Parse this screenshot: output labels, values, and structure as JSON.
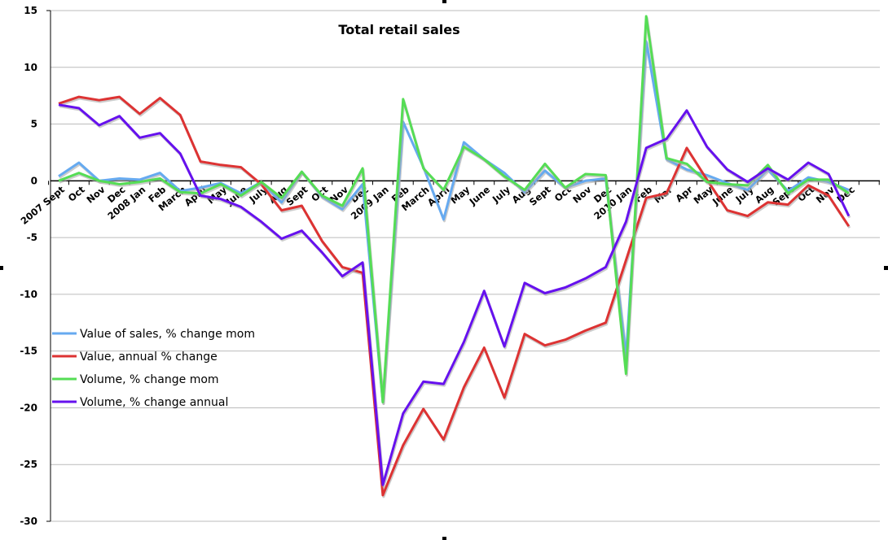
{
  "chart_data": {
    "type": "line",
    "title": "Total retail sales",
    "xlabel": "",
    "ylabel": "",
    "ylim": [
      -30,
      15
    ],
    "yticks": [
      15,
      10,
      5,
      0,
      -5,
      -10,
      -15,
      -20,
      -25,
      -30
    ],
    "grid": "horizontal",
    "legend_placement": "left",
    "categories": [
      "2007 Sept",
      "Oct",
      "Nov",
      "Dec",
      "2008 Jan",
      "Feb",
      "March",
      "April",
      "May",
      "June",
      "July",
      "Aug",
      "Sept",
      "Oct",
      "Nov",
      "Dec",
      "2009 Jan",
      "Feb",
      "March",
      "April",
      "May",
      "June",
      "July",
      "Aug",
      "Sept",
      "Oct",
      "Nov",
      "Dec",
      "2010 Jan",
      "Feb",
      "Mar",
      "Apr",
      "May",
      "June",
      "July",
      "Aug",
      "Sept",
      "Oct",
      "Nov",
      "Dec"
    ],
    "series": [
      {
        "name": "Value of sales, % change mom",
        "color": "#66aaf0",
        "values": [
          0.4,
          1.6,
          0.0,
          0.2,
          0.1,
          0.7,
          -0.9,
          -0.6,
          -0.2,
          -1.1,
          -0.1,
          -1.9,
          0.8,
          -1.4,
          -2.5,
          -0.3,
          -19.5,
          5.2,
          1.2,
          -3.4,
          3.4,
          1.9,
          0.7,
          -1.0,
          0.9,
          -0.6,
          0.0,
          0.2,
          -15.5,
          12.3,
          1.9,
          1.0,
          0.5,
          -0.2,
          -0.8,
          1.0,
          -0.9,
          0.3,
          -0.1,
          -0.8
        ]
      },
      {
        "name": "Value, annual % change",
        "color": "#dd3333",
        "values": [
          6.8,
          7.4,
          7.1,
          7.4,
          5.9,
          7.3,
          5.8,
          1.7,
          1.4,
          1.2,
          -0.3,
          -2.6,
          -2.2,
          -5.3,
          -7.6,
          -8.1,
          -27.7,
          -23.3,
          -20.1,
          -22.8,
          -18.2,
          -14.7,
          -19.1,
          -13.5,
          -14.5,
          -14.0,
          -13.2,
          -12.5,
          -7.0,
          -1.5,
          -1.1,
          2.9,
          0.1,
          -2.6,
          -3.1,
          -1.9,
          -2.1,
          -0.4,
          -1.3,
          -4.0
        ]
      },
      {
        "name": "Volume, % change mom",
        "color": "#55dd55",
        "values": [
          0.0,
          0.7,
          0.0,
          -0.3,
          -0.1,
          0.2,
          -1.0,
          -1.1,
          -0.3,
          -1.3,
          -0.1,
          -1.5,
          0.8,
          -1.3,
          -2.2,
          1.1,
          -19.5,
          7.2,
          1.1,
          -0.8,
          3.0,
          1.9,
          0.4,
          -0.8,
          1.5,
          -0.6,
          0.6,
          0.5,
          -17.0,
          14.5,
          2.0,
          1.5,
          -0.1,
          -0.3,
          -0.4,
          1.4,
          -1.1,
          0.1,
          0.1,
          -1.1
        ]
      },
      {
        "name": "Volume, % change annual",
        "color": "#6611ee",
        "values": [
          6.7,
          6.4,
          4.9,
          5.7,
          3.8,
          4.2,
          2.4,
          -1.3,
          -1.6,
          -2.3,
          -3.6,
          -5.1,
          -4.4,
          -6.3,
          -8.4,
          -7.2,
          -26.8,
          -20.5,
          -17.7,
          -17.9,
          -14.2,
          -9.7,
          -14.6,
          -9.0,
          -9.9,
          -9.4,
          -8.6,
          -7.6,
          -3.6,
          2.9,
          3.7,
          6.2,
          3.0,
          1.0,
          -0.1,
          1.1,
          0.1,
          1.6,
          0.6,
          -3.1
        ]
      }
    ]
  }
}
